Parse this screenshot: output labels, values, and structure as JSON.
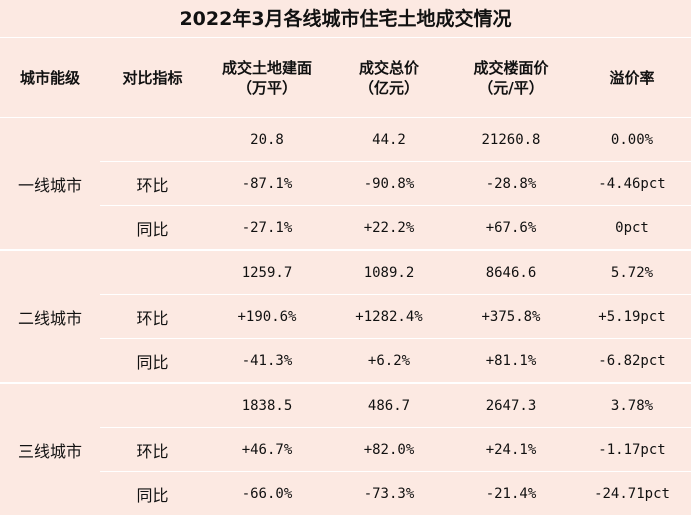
{
  "title": "2022年3月各线城市住宅土地成交情况",
  "headers": {
    "city": "城市能级",
    "index": "对比指标",
    "area_l1": "成交土地建面",
    "area_l2": "（万平）",
    "total_l1": "成交总价",
    "total_l2": "（亿元）",
    "price_l1": "成交楼面价",
    "price_l2": "（元/平）",
    "premium": "溢价率"
  },
  "groups": [
    {
      "city": "一线城市",
      "rows": [
        {
          "index": "",
          "area": "20.8",
          "total": "44.2",
          "price": "21260.8",
          "premium": "0.00%"
        },
        {
          "index": "环比",
          "area": "-87.1%",
          "total": "-90.8%",
          "price": "-28.8%",
          "premium": "-4.46pct"
        },
        {
          "index": "同比",
          "area": "-27.1%",
          "total": "+22.2%",
          "price": "+67.6%",
          "premium": "0pct"
        }
      ]
    },
    {
      "city": "二线城市",
      "rows": [
        {
          "index": "",
          "area": "1259.7",
          "total": "1089.2",
          "price": "8646.6",
          "premium": "5.72%"
        },
        {
          "index": "环比",
          "area": "+190.6%",
          "total": "+1282.4%",
          "price": "+375.8%",
          "premium": "+5.19pct"
        },
        {
          "index": "同比",
          "area": "-41.3%",
          "total": "+6.2%",
          "price": "+81.1%",
          "premium": "-6.82pct"
        }
      ]
    },
    {
      "city": "三线城市",
      "rows": [
        {
          "index": "",
          "area": "1838.5",
          "total": "486.7",
          "price": "2647.3",
          "premium": "3.78%"
        },
        {
          "index": "环比",
          "area": "+46.7%",
          "total": "+82.0%",
          "price": "+24.1%",
          "premium": "-1.17pct"
        },
        {
          "index": "同比",
          "area": "-66.0%",
          "total": "-73.3%",
          "price": "-21.4%",
          "premium": "-24.71pct"
        }
      ]
    }
  ]
}
